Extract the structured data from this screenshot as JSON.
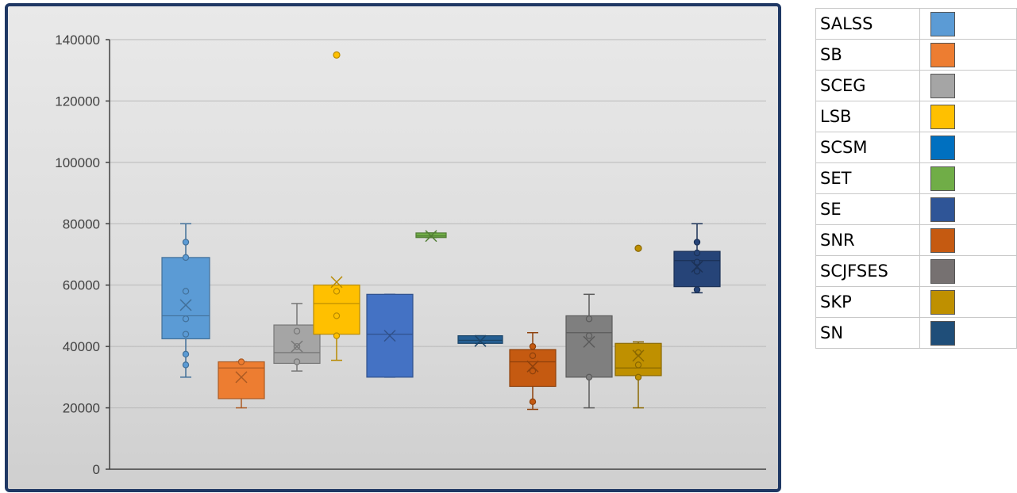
{
  "chart_data": {
    "type": "box",
    "ylim": [
      0,
      140000
    ],
    "yticks": [
      0,
      20000,
      40000,
      60000,
      80000,
      100000,
      120000,
      140000
    ],
    "grid": true,
    "legend_position": "right",
    "series": [
      {
        "name": "SALSS",
        "color": "#5b9bd5",
        "min": 30000,
        "q1": 42500,
        "median": 50000,
        "q3": 69000,
        "max": 80000,
        "mean": 53500,
        "points": [
          34000,
          37500,
          44000,
          49000,
          58000,
          69000,
          74000
        ],
        "outliers": []
      },
      {
        "name": "SB",
        "color": "#ed7d31",
        "min": 20000,
        "q1": 23000,
        "median": 33000,
        "q3": 35000,
        "max": 35000,
        "mean": 30000,
        "points": [
          35000
        ],
        "outliers": []
      },
      {
        "name": "SCEG",
        "color": "#a5a5a5",
        "min": 32000,
        "q1": 34500,
        "median": 38000,
        "q3": 47000,
        "max": 54000,
        "mean": 40000,
        "points": [
          35000,
          40000,
          45000
        ],
        "outliers": []
      },
      {
        "name": "LSB",
        "color": "#ffc000",
        "min": 35500,
        "q1": 44000,
        "median": 54000,
        "q3": 60000,
        "max": 60000,
        "mean": 61000,
        "points": [
          43500,
          50000,
          58000
        ],
        "outliers": [
          135000
        ]
      },
      {
        "name": "SCSM",
        "color": "#4472c4",
        "min": 30000,
        "q1": 30000,
        "median": 44000,
        "q3": 57000,
        "max": 57000,
        "mean": 43500,
        "points": [],
        "outliers": []
      },
      {
        "name": "SET",
        "color": "#70ad47",
        "min": 75500,
        "q1": 75500,
        "median": 76000,
        "q3": 77000,
        "max": 77000,
        "mean": 76000,
        "points": [],
        "outliers": []
      },
      {
        "name": "SE",
        "color": "#255e91",
        "min": 41000,
        "q1": 41000,
        "median": 42000,
        "q3": 43500,
        "max": 43500,
        "mean": 41800,
        "points": [],
        "outliers": []
      },
      {
        "name": "SNR",
        "color": "#c55a11",
        "min": 19500,
        "q1": 27000,
        "median": 35000,
        "q3": 39000,
        "max": 44500,
        "mean": 33500,
        "points": [
          22000,
          32000,
          37000,
          40000
        ],
        "outliers": []
      },
      {
        "name": "SCJFSES",
        "color": "#7f7f7f",
        "min": 20000,
        "q1": 30000,
        "median": 44500,
        "q3": 50000,
        "max": 57000,
        "mean": 41500,
        "points": [
          30000,
          43500,
          49000
        ],
        "outliers": []
      },
      {
        "name": "SKP",
        "color": "#bf9000",
        "min": 20000,
        "q1": 30500,
        "median": 33000,
        "q3": 41000,
        "max": 41500,
        "mean": 37000,
        "points": [
          30000,
          34000,
          38000
        ],
        "outliers": [
          72000
        ]
      },
      {
        "name": "SN",
        "color": "#264478",
        "min": 57500,
        "q1": 59500,
        "median": 68000,
        "q3": 71000,
        "max": 80000,
        "mean": 66000,
        "points": [
          58500,
          64500,
          67500,
          70500,
          74000
        ],
        "outliers": []
      }
    ]
  },
  "legend": {
    "items": [
      {
        "label": "SALSS",
        "color": "#5b9bd5"
      },
      {
        "label": "SB",
        "color": "#ed7d31"
      },
      {
        "label": "SCEG",
        "color": "#a5a5a5"
      },
      {
        "label": "LSB",
        "color": "#ffc000"
      },
      {
        "label": "SCSM",
        "color": "#0070c0"
      },
      {
        "label": "SET",
        "color": "#70ad47"
      },
      {
        "label": "SE",
        "color": "#2f5597"
      },
      {
        "label": "SNR",
        "color": "#c55a11"
      },
      {
        "label": "SCJFSES",
        "color": "#767171"
      },
      {
        "label": "SKP",
        "color": "#bf9000"
      },
      {
        "label": "SN",
        "color": "#1f4e79"
      }
    ]
  }
}
